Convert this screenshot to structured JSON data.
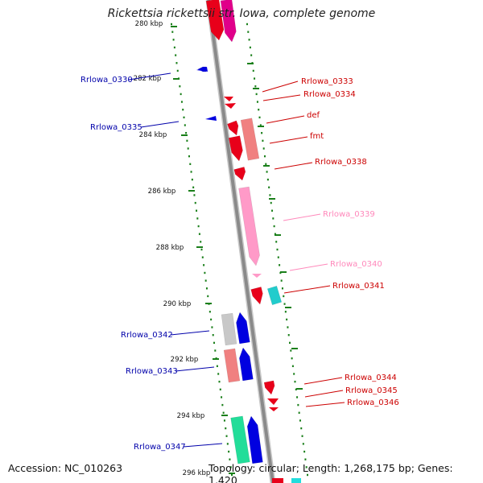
{
  "title": "Rickettsia rickettsii str. Iowa, complete genome",
  "footer": {
    "accession": "Accession: NC_010263",
    "topology": "Topology: circular; Length: 1,268,175 bp; Genes: 1,420"
  },
  "colors": {
    "backbone": "#8a8a8a",
    "tick": "#1a7f1a",
    "forward_gene": "#e8001a",
    "reverse_gene": "#0000e0",
    "pseudo_forward": "#ff9ac8",
    "label_forward": "#cc0000",
    "label_reverse": "#0000aa",
    "label_pink": "#ff88bb"
  },
  "scale": {
    "kbp_marks": [
      {
        "kbp": 280,
        "label": "280 kbp"
      },
      {
        "kbp": 282,
        "label": "282 kbp"
      },
      {
        "kbp": 284,
        "label": "284 kbp"
      },
      {
        "kbp": 286,
        "label": "286 kbp"
      },
      {
        "kbp": 288,
        "label": "288 kbp"
      },
      {
        "kbp": 290,
        "label": "290 kbp"
      },
      {
        "kbp": 292,
        "label": "292 kbp"
      },
      {
        "kbp": 294,
        "label": "294 kbp"
      },
      {
        "kbp": 296,
        "label": "296 kbp"
      }
    ]
  },
  "gene_labels": [
    {
      "name": "Rrlowa_0330",
      "strand": "reverse"
    },
    {
      "name": "Rrlowa_0335",
      "strand": "reverse"
    },
    {
      "name": "Rrlowa_0333",
      "strand": "forward"
    },
    {
      "name": "Rrlowa_0334",
      "strand": "forward"
    },
    {
      "name": "def",
      "strand": "forward"
    },
    {
      "name": "fmt",
      "strand": "forward"
    },
    {
      "name": "Rrlowa_0338",
      "strand": "forward"
    },
    {
      "name": "Rrlowa_0339",
      "strand": "pink"
    },
    {
      "name": "Rrlowa_0340",
      "strand": "pink"
    },
    {
      "name": "Rrlowa_0341",
      "strand": "forward"
    },
    {
      "name": "Rrlowa_0342",
      "strand": "reverse"
    },
    {
      "name": "Rrlowa_0343",
      "strand": "reverse"
    },
    {
      "name": "Rrlowa_0344",
      "strand": "forward"
    },
    {
      "name": "Rrlowa_0345",
      "strand": "forward"
    },
    {
      "name": "Rrlowa_0346",
      "strand": "forward"
    },
    {
      "name": "Rrlowa_0347",
      "strand": "reverse"
    }
  ]
}
